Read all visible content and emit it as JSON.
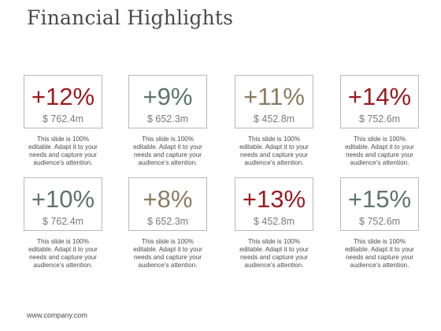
{
  "slide": {
    "title": "Financial Highlights",
    "footer": "www.company.com"
  },
  "colors": {
    "red": "#9b1b20",
    "teal": "#5c756e",
    "tan": "#8c7b62",
    "border": "#b9b9b9",
    "amount_gray": "#7a7a7a"
  },
  "cards": [
    {
      "percent": "+12%",
      "amount": "$ 762.4m",
      "color": "#9b1b20",
      "desc": [
        "This slide is 100%",
        "editable. Adapt it to your",
        "needs and capture your",
        "audience’s attention."
      ]
    },
    {
      "percent": "+9%",
      "amount": "$ 652.3m",
      "color": "#5c756e",
      "desc": [
        "This slide is 100%",
        "editable. Adapt it to your",
        "needs and capture your",
        "audience’s attention."
      ]
    },
    {
      "percent": "+11%",
      "amount": "$ 452.8m",
      "color": "#8c7b62",
      "desc": [
        "This slide is 100%",
        "editable. Adapt it to your",
        "needs and capture your",
        "audience’s attention."
      ]
    },
    {
      "percent": "+14%",
      "amount": "$ 752.6m",
      "color": "#9b1b20",
      "desc": [
        "This slide is 100%",
        "editable. Adapt it to your",
        "needs and capture your",
        "audience’s attention."
      ]
    },
    {
      "percent": "+10%",
      "amount": "$ 762.4m",
      "color": "#5c756e",
      "desc": [
        "This slide is 100%",
        "editable. Adapt it to your",
        "needs and capture your",
        "audience’s attention."
      ]
    },
    {
      "percent": "+8%",
      "amount": "$ 652.3m",
      "color": "#8c7b62",
      "desc": [
        "This slide is 100%",
        "editable. Adapt it to your",
        "needs and capture your",
        "audience’s attention."
      ]
    },
    {
      "percent": "+13%",
      "amount": "$ 452.8m",
      "color": "#9b1b20",
      "desc": [
        "This slide is 100%",
        "editable. Adapt it to your",
        "needs and capture your",
        "audience’s attention."
      ]
    },
    {
      "percent": "+15%",
      "amount": "$ 752.6m",
      "color": "#5c756e",
      "desc": [
        "This slide is 100%",
        "editable. Adapt it to your",
        "needs and capture your",
        "audience’s attention."
      ]
    }
  ]
}
